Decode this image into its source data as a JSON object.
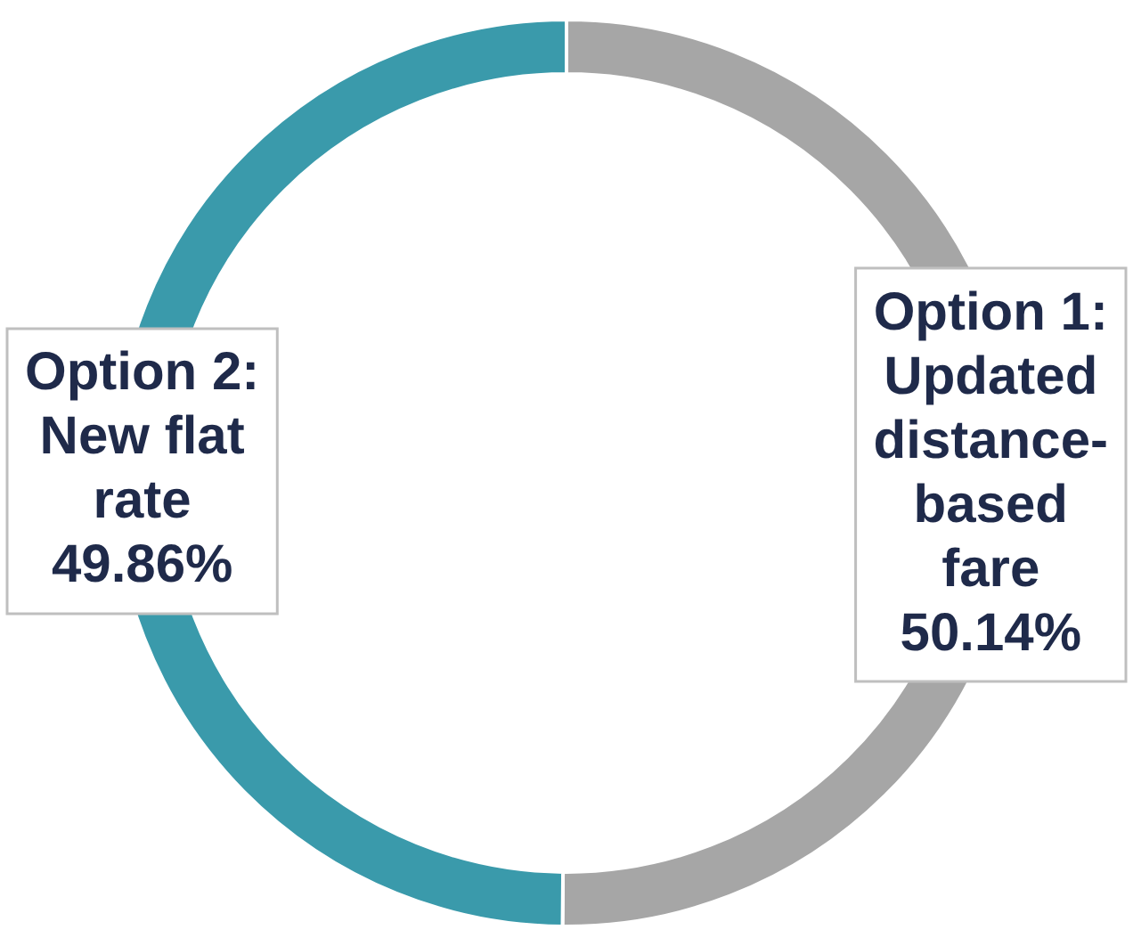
{
  "chart_data": {
    "type": "donut",
    "categories": [
      "Option 1: Updated distance-based fare",
      "Option 2: New flat rate"
    ],
    "values": [
      50.14,
      49.86
    ],
    "value_labels": [
      "50.14%",
      "49.86%"
    ],
    "colors": [
      "#a6a6a6",
      "#3a9aab"
    ],
    "legend": false
  }
}
